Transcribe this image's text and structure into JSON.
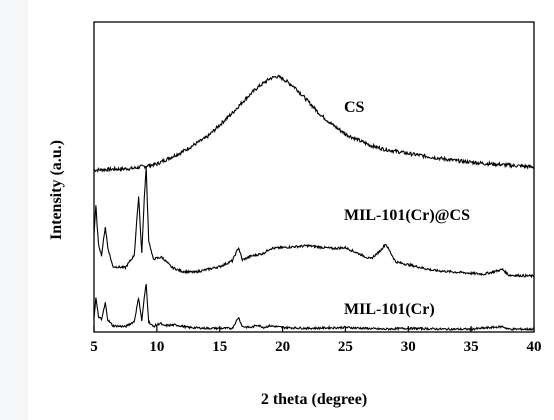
{
  "chart_data": {
    "type": "line",
    "title": "",
    "xlabel": "2 theta (degree)",
    "ylabel": "Intensity (a.u.)",
    "xlim": [
      5,
      40
    ],
    "xticks": [
      5,
      10,
      15,
      20,
      25,
      30,
      35,
      40
    ],
    "yticks": [],
    "grid": false,
    "legend": "none",
    "series": [
      {
        "name": "CS",
        "color": "#000000",
        "x": [
          5,
          8,
          10,
          12,
          14,
          16,
          17,
          18,
          19,
          19.5,
          20,
          21,
          22,
          23,
          24,
          25,
          26,
          27,
          28,
          30,
          32,
          34,
          36,
          38,
          40
        ],
        "y": [
          0,
          0.05,
          0.2,
          0.6,
          1.1,
          1.9,
          2.35,
          2.75,
          3.05,
          3.12,
          3.05,
          2.75,
          2.3,
          1.85,
          1.5,
          1.2,
          1.0,
          0.82,
          0.7,
          0.55,
          0.42,
          0.3,
          0.22,
          0.16,
          0.1
        ]
      },
      {
        "name": "MIL-101(Cr)@CS",
        "color": "#000000",
        "x": [
          5,
          5.15,
          5.35,
          5.6,
          5.9,
          6.1,
          6.5,
          7.5,
          8.2,
          8.55,
          8.8,
          9.0,
          9.15,
          9.35,
          9.7,
          10.4,
          11.2,
          12,
          13,
          14,
          15,
          16,
          16.5,
          16.8,
          17.5,
          18.5,
          19,
          20,
          22,
          24,
          25,
          26,
          27,
          27.8,
          28.2,
          29,
          30,
          32,
          34,
          36,
          37.5,
          38,
          40
        ],
        "y": [
          2.3,
          3.8,
          1.8,
          1.2,
          2.7,
          1.6,
          0.6,
          0.55,
          1.2,
          4.3,
          1.3,
          4.2,
          5.8,
          2.0,
          1.0,
          1.1,
          0.55,
          0.35,
          0.3,
          0.45,
          0.6,
          0.9,
          1.6,
          0.95,
          1.15,
          1.3,
          1.55,
          1.6,
          1.7,
          1.55,
          1.6,
          1.3,
          1.0,
          1.45,
          1.8,
          0.85,
          0.7,
          0.4,
          0.3,
          0.2,
          0.45,
          0.15,
          0.1
        ]
      },
      {
        "name": "MIL-101(Cr)",
        "color": "#000000",
        "x": [
          5,
          5.15,
          5.35,
          5.6,
          5.9,
          6.1,
          6.5,
          7.5,
          8.2,
          8.55,
          8.8,
          9.0,
          9.15,
          9.35,
          9.7,
          10.3,
          10.5,
          11.5,
          12.5,
          14,
          16,
          16.5,
          16.8,
          17.5,
          18,
          18.5,
          19,
          20,
          22,
          25,
          28,
          30,
          33,
          35,
          37.5,
          38,
          40
        ],
        "y": [
          0.7,
          1.9,
          0.8,
          0.6,
          1.6,
          0.6,
          0.25,
          0.2,
          0.5,
          1.9,
          0.55,
          1.9,
          2.7,
          0.5,
          0.2,
          0.4,
          0.25,
          0.3,
          0.15,
          0.1,
          0.1,
          0.75,
          0.2,
          0.15,
          0.3,
          0.15,
          0.25,
          0.15,
          0.1,
          0.15,
          0.05,
          0.1,
          0.05,
          0.05,
          0.2,
          0.05,
          0.05
        ]
      }
    ]
  }
}
